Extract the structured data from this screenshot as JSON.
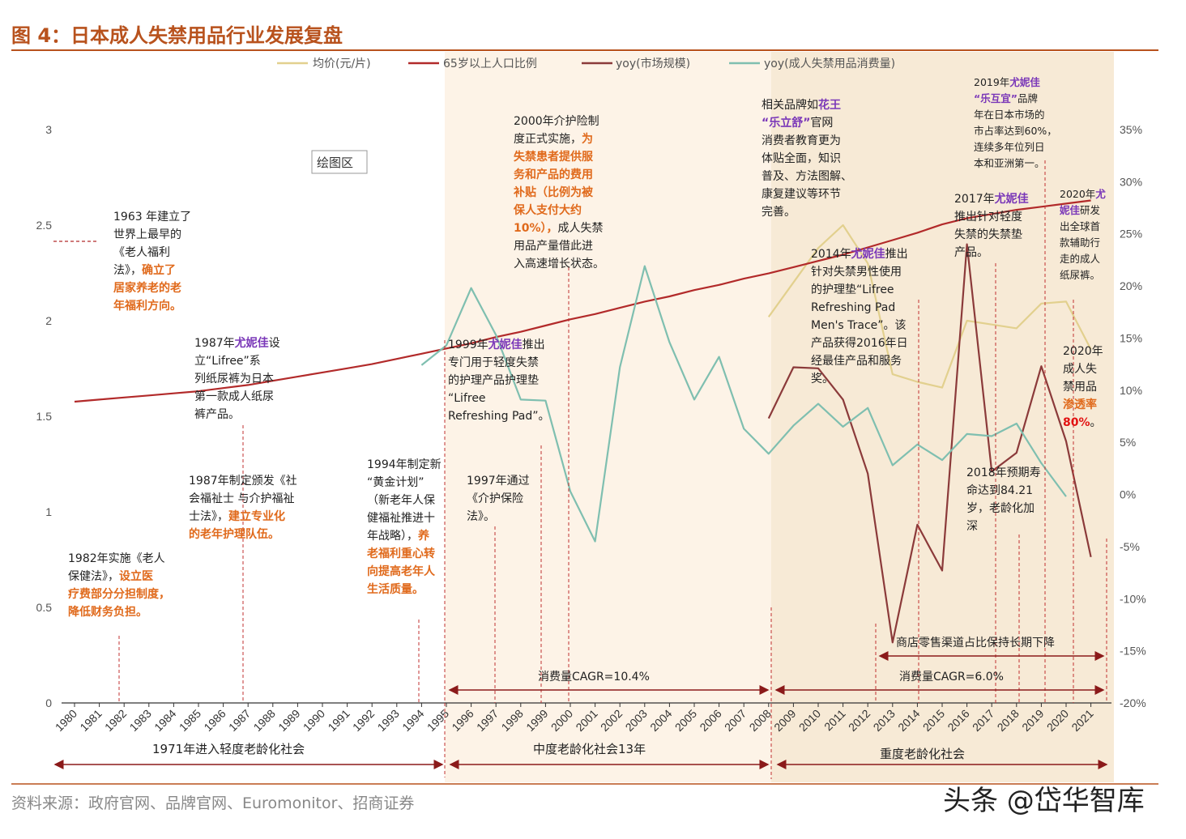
{
  "title": "图 4：日本成人失禁用品行业发展复盘",
  "source": "资料来源：政府官网、品牌官网、Euromonitor、招商证券",
  "watermark": "头条 @岱华智库",
  "plot_area_label": "绘图区",
  "chart_data": {
    "type": "line",
    "x": [
      "1980",
      "1981",
      "1982",
      "1983",
      "1984",
      "1985",
      "1986",
      "1987",
      "1988",
      "1989",
      "1990",
      "1991",
      "1992",
      "1993",
      "1994",
      "1995",
      "1996",
      "1997",
      "1998",
      "1999",
      "2000",
      "2001",
      "2002",
      "2003",
      "2004",
      "2005",
      "2006",
      "2007",
      "2008",
      "2009",
      "2010",
      "2011",
      "2012",
      "2013",
      "2014",
      "2015",
      "2016",
      "2017",
      "2018",
      "2019",
      "2020",
      "2021"
    ],
    "left_axis": {
      "ticks": [
        "0",
        "0.5",
        "1",
        "1.5",
        "2",
        "2.5",
        "3"
      ],
      "ylim": [
        0,
        3
      ]
    },
    "right_axis": {
      "ticks": [
        "-20%",
        "-15%",
        "-10%",
        "-5%",
        "0%",
        "5%",
        "10%",
        "15%",
        "20%",
        "25%",
        "30%",
        "35%"
      ],
      "ylim": [
        -20,
        35
      ]
    },
    "series": [
      {
        "name": "均价(元/片)",
        "axis": "left",
        "color": "#e2d08e",
        "values": [
          null,
          null,
          null,
          null,
          null,
          null,
          null,
          null,
          null,
          null,
          null,
          null,
          null,
          null,
          null,
          null,
          null,
          null,
          null,
          null,
          null,
          null,
          null,
          null,
          null,
          null,
          null,
          null,
          2.02,
          2.2,
          2.38,
          2.5,
          2.3,
          1.72,
          1.68,
          1.65,
          2.0,
          1.98,
          1.96,
          2.09,
          2.1,
          1.85
        ]
      },
      {
        "name": "65岁以上人口比例",
        "axis": "right",
        "color": "#b22a2a",
        "values": [
          8.9,
          9.1,
          9.3,
          9.5,
          9.7,
          9.9,
          10.2,
          10.5,
          10.9,
          11.3,
          11.7,
          12.1,
          12.5,
          13.0,
          13.5,
          14.0,
          14.5,
          15.1,
          15.6,
          16.2,
          16.8,
          17.3,
          17.9,
          18.5,
          19.0,
          19.6,
          20.1,
          20.7,
          21.2,
          21.8,
          22.4,
          23.0,
          23.7,
          24.4,
          25.1,
          25.9,
          26.5,
          26.9,
          27.3,
          27.6,
          27.9,
          28.2
        ]
      },
      {
        "name": "yoy(市场规模)",
        "axis": "right",
        "color": "#8b3a3a",
        "values": [
          null,
          null,
          null,
          null,
          null,
          null,
          null,
          null,
          null,
          null,
          null,
          null,
          null,
          null,
          null,
          null,
          null,
          null,
          null,
          null,
          null,
          null,
          null,
          null,
          null,
          null,
          null,
          null,
          7.3,
          12.2,
          12.1,
          9.1,
          2.0,
          -14.2,
          -2.9,
          -7.3,
          24.0,
          2.2,
          4.0,
          12.3,
          5.1,
          -6.0
        ]
      },
      {
        "name": "yoy(成人失禁用品消费量)",
        "axis": "right",
        "color": "#7fbfb0",
        "values": [
          null,
          null,
          null,
          null,
          null,
          null,
          null,
          null,
          null,
          null,
          null,
          null,
          null,
          null,
          12.4,
          14.3,
          19.8,
          15.3,
          9.1,
          9.0,
          0.3,
          -4.5,
          12.2,
          21.9,
          14.6,
          9.1,
          13.2,
          6.3,
          3.9,
          6.6,
          8.7,
          6.5,
          8.3,
          2.8,
          4.8,
          3.3,
          5.8,
          5.6,
          6.8,
          3.0,
          -0.2,
          null
        ]
      }
    ]
  },
  "annotations": {
    "a1963": [
      "1963 年建立了",
      "世界上最早的",
      "《老人福利",
      "法》，",
      "确立了",
      "居家养老的老",
      "年福利方向。"
    ],
    "a1987a": [
      "1987年",
      "尤妮佳",
      "设",
      "立“Lifree”系",
      "列纸尿裤为日本",
      "第一款成人纸尿",
      "裤产品。"
    ],
    "a1987b": [
      "1987年制定颁发《社",
      "会福祉士 与介护福祉",
      "士法》，",
      "建立专业化",
      "的老年护理队伍。"
    ],
    "a1982": [
      "1982年实施《老人",
      "保健法》，",
      "设立医",
      "疗费部分分担制度，",
      "降低财务负担。"
    ],
    "a1994": [
      "1994年制定新",
      "“黄金计划”",
      "（新老年人保",
      "健福祉推进十",
      "年战略），",
      "养",
      "老福利重心转",
      "向提高老年人",
      "生活质量。"
    ],
    "a1997": [
      "1997年通过",
      "《介护保险",
      "法》。"
    ],
    "a1999": [
      "1999年",
      "尤妮佳",
      "推出",
      "专门用于轻度失禁",
      "的护理产品护理垫",
      "“Lifree",
      "Refreshing Pad”。"
    ],
    "a2000": [
      "2000年介护险制",
      "度正式实施，",
      "为",
      "失禁患者提供服",
      "务和产品的费用",
      "补贴（比例为被",
      "保人支付大约",
      "10%），",
      "成人失禁",
      "用品产量借此进",
      "入高速增长状态。"
    ],
    "a2008": [
      "相关品牌如",
      "花王",
      "“乐立舒”",
      "官网",
      "消费者教育更为",
      "体贴全面，知识",
      "普及、方法图解、",
      "康复建议等环节",
      "完善。"
    ],
    "a2014": [
      "2014年",
      "尤妮佳",
      "推出",
      "针对失禁男性使用",
      "的护理垫“Lifree",
      "Refreshing Pad",
      "Men's Trace”。该",
      "产品获得2016年日",
      "经最佳产品和服务",
      "奖。"
    ],
    "a2017": [
      "2017年",
      "尤妮佳",
      "推出针对轻度",
      "失禁的失禁垫",
      "产品。"
    ],
    "a2019": [
      "2019年",
      "尤妮佳",
      "“乐互宜”",
      "品牌",
      "年在日本市场的",
      "市占率达到60%，",
      "连续多年位列日",
      "本和亚洲第一。"
    ],
    "a2020a": [
      "2020年",
      "尤",
      "妮佳",
      "研发",
      "出全球首",
      "款辅助行",
      "走的成人",
      "纸尿裤。"
    ],
    "a2018": [
      "2018年预期寿",
      "命达到84.21",
      "岁，老龄化加",
      "深"
    ],
    "a2020b": [
      "2020年",
      "成人失",
      "禁用品",
      "渗透率",
      "80%",
      "。"
    ]
  },
  "phases": {
    "p1": "1971年进入轻度老龄化社会",
    "p2": "中度老龄化社会13年",
    "p3": "重度老龄化社会",
    "cagr1": "消费量CAGR=10.4%",
    "cagr2": "消费量CAGR=6.0%",
    "retail": "商店零售渠道占比保持长期下降"
  }
}
